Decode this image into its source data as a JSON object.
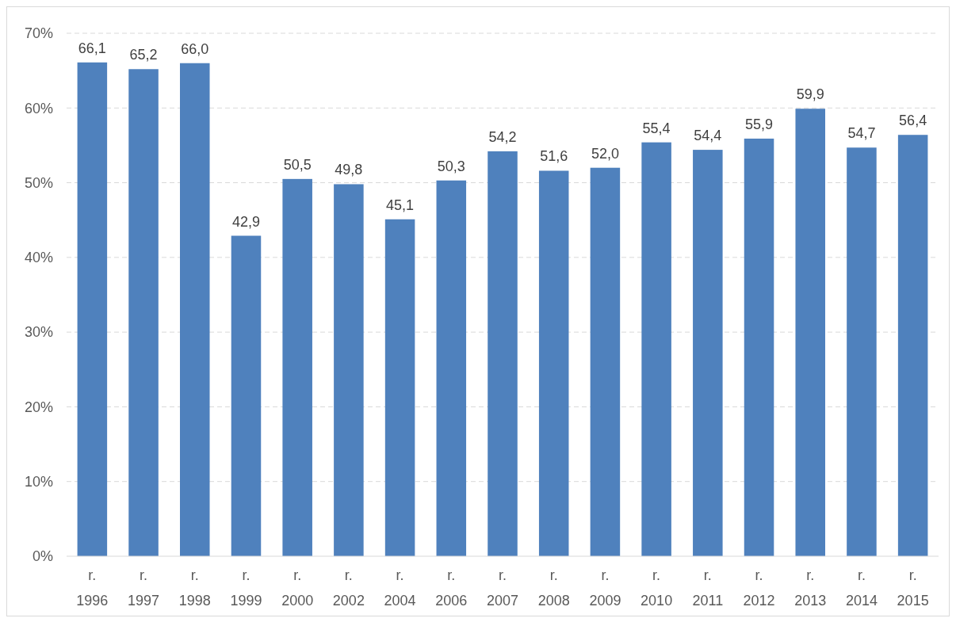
{
  "chart_data": {
    "type": "bar",
    "categories": [
      "r. 1996",
      "r. 1997",
      "r. 1998",
      "r. 1999",
      "r. 2000",
      "r. 2002",
      "r. 2004",
      "r. 2006",
      "r. 2007",
      "r. 2008",
      "r. 2009",
      "r. 2010",
      "r. 2011",
      "r. 2012",
      "r. 2013",
      "r. 2014",
      "r. 2015"
    ],
    "values": [
      66.1,
      65.2,
      66.0,
      42.9,
      50.5,
      49.8,
      45.1,
      50.3,
      54.2,
      51.6,
      52.0,
      55.4,
      54.4,
      55.9,
      59.9,
      54.7,
      56.4
    ],
    "value_labels": [
      "66,1",
      "65,2",
      "66,0",
      "42,9",
      "50,5",
      "49,8",
      "45,1",
      "50,3",
      "54,2",
      "51,6",
      "52,0",
      "55,4",
      "54,4",
      "55,9",
      "59,9",
      "54,7",
      "56,4"
    ],
    "color": "#4f81bd",
    "ylim": [
      0,
      70
    ],
    "yticks": [
      {
        "value": 0,
        "label": "0%"
      },
      {
        "value": 10,
        "label": "10%"
      },
      {
        "value": 20,
        "label": "20%"
      },
      {
        "value": 30,
        "label": "30%"
      },
      {
        "value": 40,
        "label": "40%"
      },
      {
        "value": 50,
        "label": "50%"
      },
      {
        "value": 60,
        "label": "60%"
      },
      {
        "value": 70,
        "label": "70%"
      }
    ],
    "grid": "y"
  }
}
